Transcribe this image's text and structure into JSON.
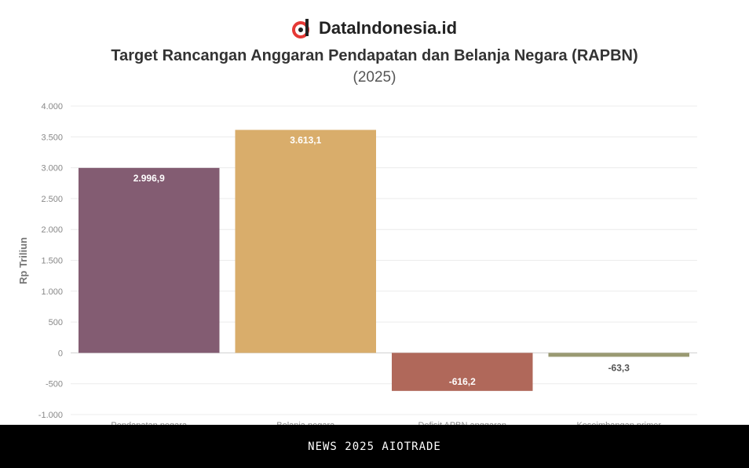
{
  "brand": {
    "name": "DataIndonesia.id",
    "logo_icon": "dataindonesia-logo-icon",
    "accent": "#e53935"
  },
  "chart_data": {
    "type": "bar",
    "title": "Target Rancangan Anggaran Pendapatan dan Belanja Negara (RAPBN)",
    "subtitle": "(2025)",
    "ylabel": "Rp Triliun",
    "ylim": [
      -1000,
      4000
    ],
    "yticks": [
      -1000,
      -500,
      0,
      500,
      1000,
      1500,
      2000,
      2500,
      3000,
      3500,
      4000
    ],
    "ytick_labels": [
      "-1.000",
      "-500",
      "0",
      "500",
      "1.000",
      "1.500",
      "2.000",
      "2.500",
      "3.000",
      "3.500",
      "4.000"
    ],
    "grid": true,
    "categories": [
      "Pendapatan negara",
      "Belanja negara",
      "Defisit APBN anggaran",
      "Keseimbangan primer"
    ],
    "values": [
      2996.9,
      3613.1,
      -616.2,
      -63.3
    ],
    "value_labels": [
      "2.996,9",
      "3.613,1",
      "-616,2",
      "-63,3"
    ],
    "colors": [
      "#835c72",
      "#d9ad6b",
      "#b0685a",
      "#9a9a72"
    ]
  },
  "footer": {
    "text": "NEWS 2025 AIOTRADE"
  }
}
